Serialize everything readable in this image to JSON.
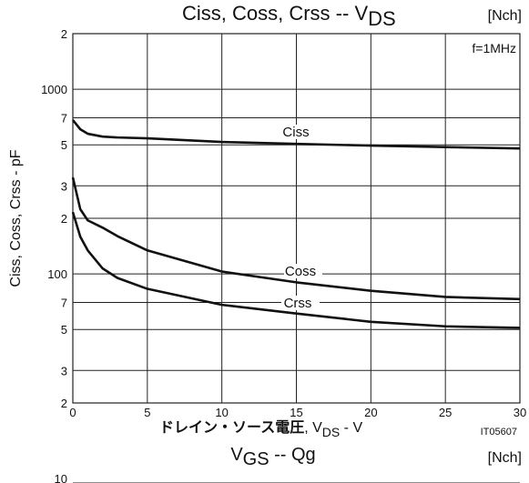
{
  "chart_data": {
    "type": "line",
    "title": "Ciss, Coss, Crss -- V",
    "title_subscript": "DS",
    "tag": "[Nch]",
    "condition": "f=1MHz",
    "x_label_jp": "ドレイン・ソース電圧",
    "x_label": ", V",
    "x_label_subscript": "DS",
    "x_label_unit": " - V",
    "y_label": "Ciss, Coss, Crss - pF",
    "figure_id": "IT05607",
    "log_y": true,
    "grid": true,
    "x": [
      0,
      0.5,
      1,
      2,
      3,
      5,
      10,
      15,
      20,
      25,
      30
    ],
    "series": [
      {
        "name": "Ciss",
        "color": "#111111",
        "values": [
          681,
          607,
          574,
          554,
          548,
          542,
          518,
          506,
          495,
          486,
          478
        ]
      },
      {
        "name": "Coss",
        "color": "#111111",
        "values": [
          333,
          224,
          195,
          178,
          160,
          134,
          103,
          90,
          81,
          75,
          73
        ]
      },
      {
        "name": "Crss",
        "color": "#111111",
        "values": [
          216,
          159,
          134,
          107,
          95,
          83,
          68,
          61,
          55,
          52,
          51
        ]
      }
    ],
    "xlim": [
      0,
      30
    ],
    "xticks": [
      0,
      5,
      10,
      15,
      20,
      25,
      30
    ],
    "ylim": [
      20,
      2000
    ],
    "yticks": [
      {
        "value": 2000,
        "label": "2"
      },
      1000,
      {
        "value": 700,
        "label": "7"
      },
      {
        "value": 500,
        "label": "5"
      },
      {
        "value": 300,
        "label": "3"
      },
      {
        "value": 200,
        "label": "2"
      },
      100,
      {
        "value": 70,
        "label": "7"
      },
      {
        "value": 50,
        "label": "5"
      },
      {
        "value": 30,
        "label": "3"
      },
      {
        "value": 20,
        "label": "2"
      }
    ]
  },
  "next_panel": {
    "title": "V",
    "title_subscript": "GS",
    "title_rest": " -- Qg",
    "tag": "[Nch]",
    "first_tick": "10"
  }
}
